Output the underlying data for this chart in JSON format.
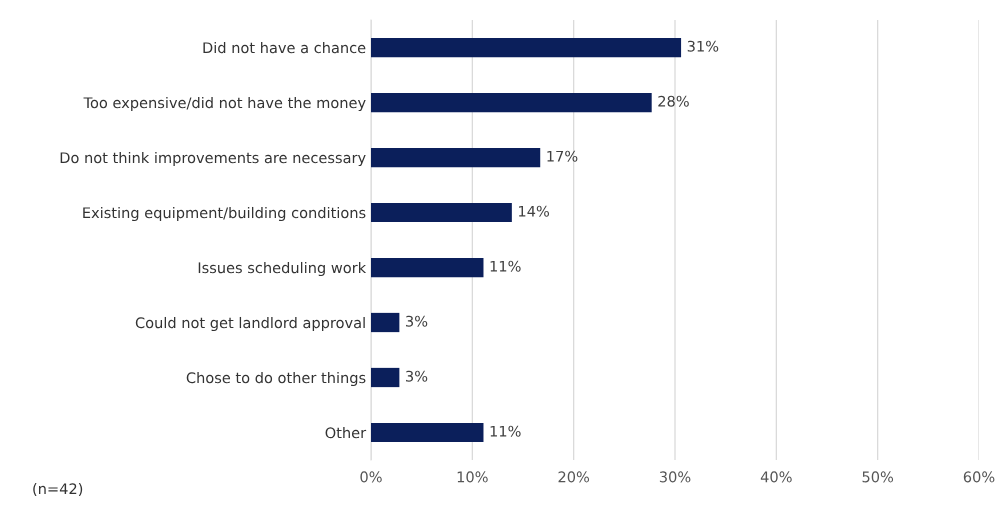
{
  "chart_data": {
    "type": "bar",
    "orientation": "horizontal",
    "categories": [
      "Did not have a chance",
      "Too expensive/did not have the money",
      "Do not think improvements are necessary",
      "Existing equipment/building conditions",
      "Issues scheduling work",
      "Could not get landlord approval",
      "Chose to do other things",
      "Other"
    ],
    "values": [
      30.6,
      27.7,
      16.7,
      13.9,
      11.1,
      2.8,
      2.8,
      11.1
    ],
    "value_labels": [
      "31%",
      "28%",
      "17%",
      "14%",
      "11%",
      "3%",
      "3%",
      "11%"
    ],
    "color": "#0b1f5b",
    "xlim": [
      0,
      60
    ],
    "xticks": [
      {
        "value": 0,
        "label": "0%"
      },
      {
        "value": 10,
        "label": "10%"
      },
      {
        "value": 20,
        "label": "20%"
      },
      {
        "value": 30,
        "label": "30%"
      },
      {
        "value": 40,
        "label": "40%"
      },
      {
        "value": 50,
        "label": "50%"
      },
      {
        "value": 60,
        "label": "60%"
      }
    ],
    "grid": "x",
    "annotations": [
      "(n=42)"
    ]
  }
}
